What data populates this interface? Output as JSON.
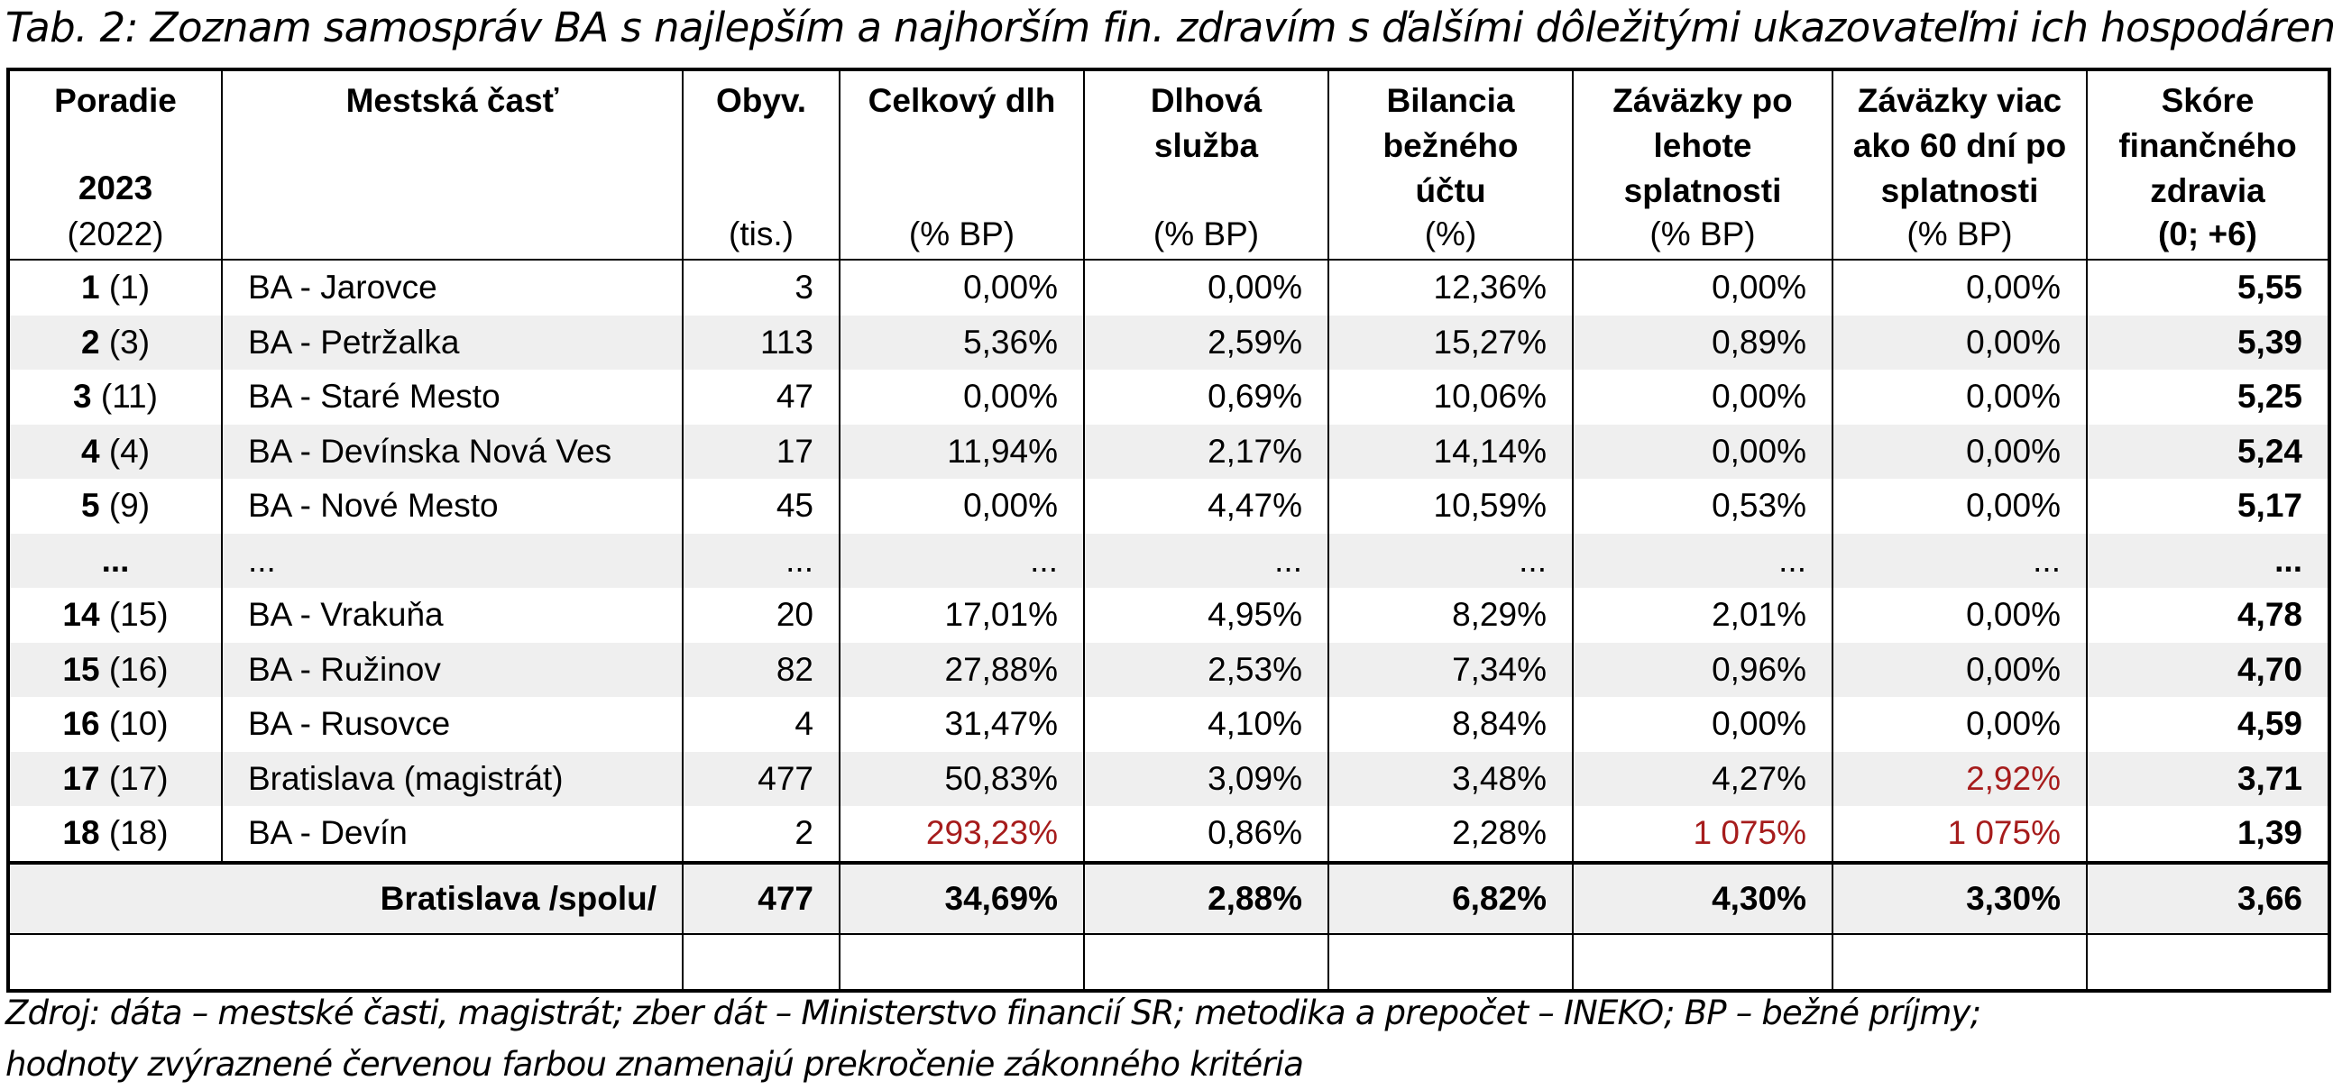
{
  "caption": "Tab. 2: Zoznam samospráv BA s najlepším a najhorším fin. zdravím s ďalšími dôležitými ukazovateľmi ich hospodárenia",
  "headers": {
    "rank": {
      "title": "Poradie",
      "year": "2023",
      "prev": "(2022)"
    },
    "name": {
      "title": "Mestská časť"
    },
    "pop": {
      "title": "Obyv.",
      "unit": "(tis.)"
    },
    "debt": {
      "title": "Celkový dlh",
      "unit": "(% BP)"
    },
    "service": {
      "title_1": "Dlhová",
      "title_2": "služba",
      "unit": "(% BP)"
    },
    "balance": {
      "title_1": "Bilancia",
      "title_2": "bežného",
      "title_3": "účtu",
      "unit": "(%)"
    },
    "overdue": {
      "title_1": "Záväzky po",
      "title_2": "lehote",
      "title_3": "splatnosti",
      "unit": "(% BP)"
    },
    "overdue60": {
      "title_1": "Záväzky viac",
      "title_2": "ako 60 dní po",
      "title_3": "splatnosti",
      "unit": "(% BP)"
    },
    "score": {
      "title_1": "Skóre",
      "title_2": "finančného",
      "title_3": "zdravia",
      "unit": "(0; +6)"
    }
  },
  "rows": [
    {
      "rank": "1",
      "prev": "(1)",
      "name": "BA - Jarovce",
      "pop": "3",
      "debt": "0,00%",
      "service": "0,00%",
      "balance": "12,36%",
      "overdue": "0,00%",
      "overdue60": "0,00%",
      "score": "5,55"
    },
    {
      "rank": "2",
      "prev": "(3)",
      "name": "BA - Petržalka",
      "pop": "113",
      "debt": "5,36%",
      "service": "2,59%",
      "balance": "15,27%",
      "overdue": "0,89%",
      "overdue60": "0,00%",
      "score": "5,39"
    },
    {
      "rank": "3",
      "prev": "(11)",
      "name": "BA - Staré Mesto",
      "pop": "47",
      "debt": "0,00%",
      "service": "0,69%",
      "balance": "10,06%",
      "overdue": "0,00%",
      "overdue60": "0,00%",
      "score": "5,25"
    },
    {
      "rank": "4",
      "prev": "(4)",
      "name": "BA - Devínska Nová Ves",
      "pop": "17",
      "debt": "11,94%",
      "service": "2,17%",
      "balance": "14,14%",
      "overdue": "0,00%",
      "overdue60": "0,00%",
      "score": "5,24"
    },
    {
      "rank": "5",
      "prev": "(9)",
      "name": "BA - Nové Mesto",
      "pop": "45",
      "debt": "0,00%",
      "service": "4,47%",
      "balance": "10,59%",
      "overdue": "0,53%",
      "overdue60": "0,00%",
      "score": "5,17"
    },
    {
      "rank": "...",
      "prev": "",
      "name": "...",
      "pop": "...",
      "debt": "...",
      "service": "...",
      "balance": "...",
      "overdue": "...",
      "overdue60": "...",
      "score": "..."
    },
    {
      "rank": "14",
      "prev": "(15)",
      "name": "BA - Vrakuňa",
      "pop": "20",
      "debt": "17,01%",
      "service": "4,95%",
      "balance": "8,29%",
      "overdue": "2,01%",
      "overdue60": "0,00%",
      "score": "4,78"
    },
    {
      "rank": "15",
      "prev": "(16)",
      "name": "BA - Ružinov",
      "pop": "82",
      "debt": "27,88%",
      "service": "2,53%",
      "balance": "7,34%",
      "overdue": "0,96%",
      "overdue60": "0,00%",
      "score": "4,70"
    },
    {
      "rank": "16",
      "prev": "(10)",
      "name": "BA - Rusovce",
      "pop": "4",
      "debt": "31,47%",
      "service": "4,10%",
      "balance": "8,84%",
      "overdue": "0,00%",
      "overdue60": "0,00%",
      "score": "4,59"
    },
    {
      "rank": "17",
      "prev": "(17)",
      "name": "Bratislava (magistrát)",
      "pop": "477",
      "debt": "50,83%",
      "service": "3,09%",
      "balance": "3,48%",
      "overdue": "4,27%",
      "overdue60": "2,92%",
      "score": "3,71"
    },
    {
      "rank": "18",
      "prev": "(18)",
      "name": "BA - Devín",
      "pop": "2",
      "debt": "293,23%",
      "service": "0,86%",
      "balance": "2,28%",
      "overdue": "1 075%",
      "overdue60": "1 075%",
      "score": "1,39"
    }
  ],
  "total": {
    "label": "Bratislava /spolu/",
    "pop": "477",
    "debt": "34,69%",
    "service": "2,88%",
    "balance": "6,82%",
    "overdue": "4,30%",
    "overdue60": "3,30%",
    "score": "3,66"
  },
  "footnote": {
    "line1": "Zdroj: dáta – mestské časti, magistrát; zber dát – Ministerstvo financií SR; metodika a prepočet – INEKO; BP – bežné príjmy;",
    "line2": "hodnoty zvýraznené červenou farbou znamenajú prekročenie zákonného kritéria"
  },
  "colors": {
    "highlight_red": "#a61c1c",
    "row_shade": "#efefef"
  }
}
